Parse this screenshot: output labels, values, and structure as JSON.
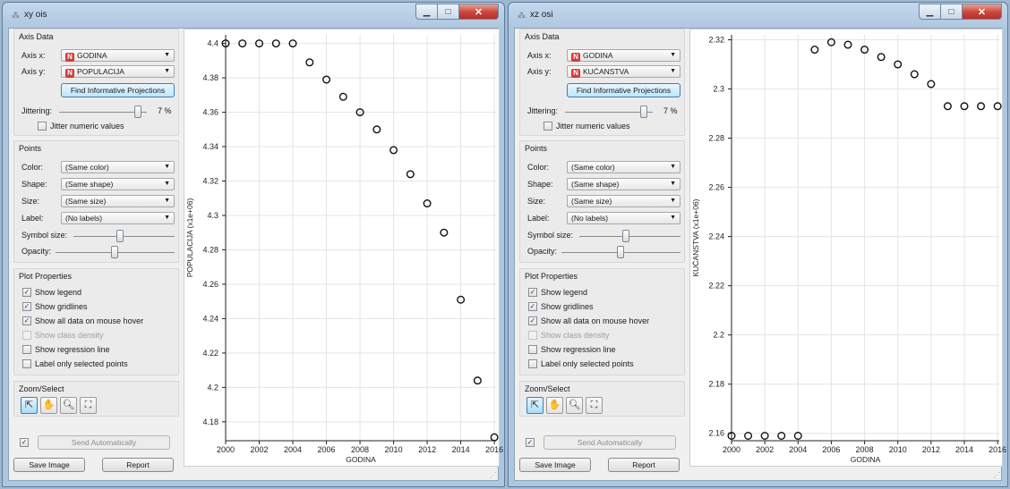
{
  "left": {
    "title": "xy ois",
    "axis_data": {
      "title": "Axis Data",
      "axis_x_label": "Axis x:",
      "axis_x_value": "GODINA",
      "axis_y_label": "Axis y:",
      "axis_y_value": "POPULACIJA",
      "find_button": "Find Informative Projections",
      "jittering_label": "Jittering:",
      "jittering_value": "7 %",
      "jitter_numeric": "Jitter numeric values"
    },
    "points": {
      "title": "Points",
      "color_label": "Color:",
      "color_value": "(Same color)",
      "shape_label": "Shape:",
      "shape_value": "(Same shape)",
      "size_label": "Size:",
      "size_value": "(Same size)",
      "label_label": "Label:",
      "label_value": "(No labels)",
      "symbol_size_label": "Symbol size:",
      "opacity_label": "Opacity:"
    },
    "plot_properties": {
      "title": "Plot Properties",
      "show_legend": "Show legend",
      "show_gridlines": "Show gridlines",
      "show_all_data": "Show all data on mouse hover",
      "show_class_density": "Show class density",
      "show_regression": "Show regression line",
      "label_selected": "Label only selected points"
    },
    "zoom_select": {
      "title": "Zoom/Select"
    },
    "send_automatically": "Send Automatically",
    "save_image": "Save Image",
    "report": "Report",
    "chart_data": {
      "type": "scatter",
      "xlabel": "GODINA",
      "ylabel": "POPULACIJA (x1e+06)",
      "xlim": [
        2000,
        2016.1
      ],
      "ylim": [
        4.169,
        4.405
      ],
      "xticks": [
        2000,
        2002,
        2004,
        2006,
        2008,
        2010,
        2012,
        2014,
        2016
      ],
      "yticks": [
        4.18,
        4.2,
        4.22,
        4.24,
        4.26,
        4.28,
        4.3,
        4.32,
        4.34,
        4.36,
        4.38,
        4.4
      ],
      "ytick_labels": [
        "4.18",
        "4.2",
        "4.22",
        "4.24",
        "4.26",
        "4.28",
        "4.3",
        "4.32",
        "4.34",
        "4.36",
        "4.38",
        "4.4"
      ],
      "grid": true,
      "x": [
        2000,
        2001,
        2002,
        2003,
        2004,
        2005,
        2006,
        2007,
        2008,
        2009,
        2010,
        2011,
        2012,
        2013,
        2014,
        2015,
        2016
      ],
      "y": [
        4.4,
        4.4,
        4.4,
        4.4,
        4.4,
        4.389,
        4.379,
        4.369,
        4.36,
        4.35,
        4.338,
        4.324,
        4.307,
        4.29,
        4.251,
        4.204,
        4.171
      ]
    }
  },
  "right": {
    "title": "xz osi",
    "axis_data": {
      "title": "Axis Data",
      "axis_x_label": "Axis x:",
      "axis_x_value": "GODINA",
      "axis_y_label": "Axis y:",
      "axis_y_value": "KUĆANSTVA",
      "find_button": "Find Informative Projections",
      "jittering_label": "Jittering:",
      "jittering_value": "7 %",
      "jitter_numeric": "Jitter numeric values"
    },
    "points": {
      "title": "Points",
      "color_label": "Color:",
      "color_value": "(Same color)",
      "shape_label": "Shape:",
      "shape_value": "(Same shape)",
      "size_label": "Size:",
      "size_value": "(Same size)",
      "label_label": "Label:",
      "label_value": "(No labels)",
      "symbol_size_label": "Symbol size:",
      "opacity_label": "Opacity:"
    },
    "plot_properties": {
      "title": "Plot Properties",
      "show_legend": "Show legend",
      "show_gridlines": "Show gridlines",
      "show_all_data": "Show all data on mouse hover",
      "show_class_density": "Show class density",
      "show_regression": "Show regression line",
      "label_selected": "Label only selected points"
    },
    "zoom_select": {
      "title": "Zoom/Select"
    },
    "send_automatically": "Send Automatically",
    "save_image": "Save Image",
    "report": "Report",
    "chart_data": {
      "type": "scatter",
      "xlabel": "GODINA",
      "ylabel": "KUĆANSTVA (x1e+06)",
      "xlim": [
        2000,
        2016.1
      ],
      "ylim": [
        2.157,
        2.322
      ],
      "xticks": [
        2000,
        2002,
        2004,
        2006,
        2008,
        2010,
        2012,
        2014,
        2016
      ],
      "yticks": [
        2.16,
        2.18,
        2.2,
        2.22,
        2.24,
        2.26,
        2.28,
        2.3,
        2.32
      ],
      "ytick_labels": [
        "2.16",
        "2.18",
        "2.2",
        "2.22",
        "2.24",
        "2.26",
        "2.28",
        "2.3",
        "2.32"
      ],
      "grid": true,
      "x": [
        2000,
        2001,
        2002,
        2003,
        2004,
        2005,
        2006,
        2007,
        2008,
        2009,
        2010,
        2011,
        2012,
        2013,
        2014,
        2015,
        2016
      ],
      "y": [
        2.159,
        2.159,
        2.159,
        2.159,
        2.159,
        2.316,
        2.319,
        2.318,
        2.316,
        2.313,
        2.31,
        2.306,
        2.302,
        2.293,
        2.293,
        2.293,
        2.293
      ]
    }
  }
}
